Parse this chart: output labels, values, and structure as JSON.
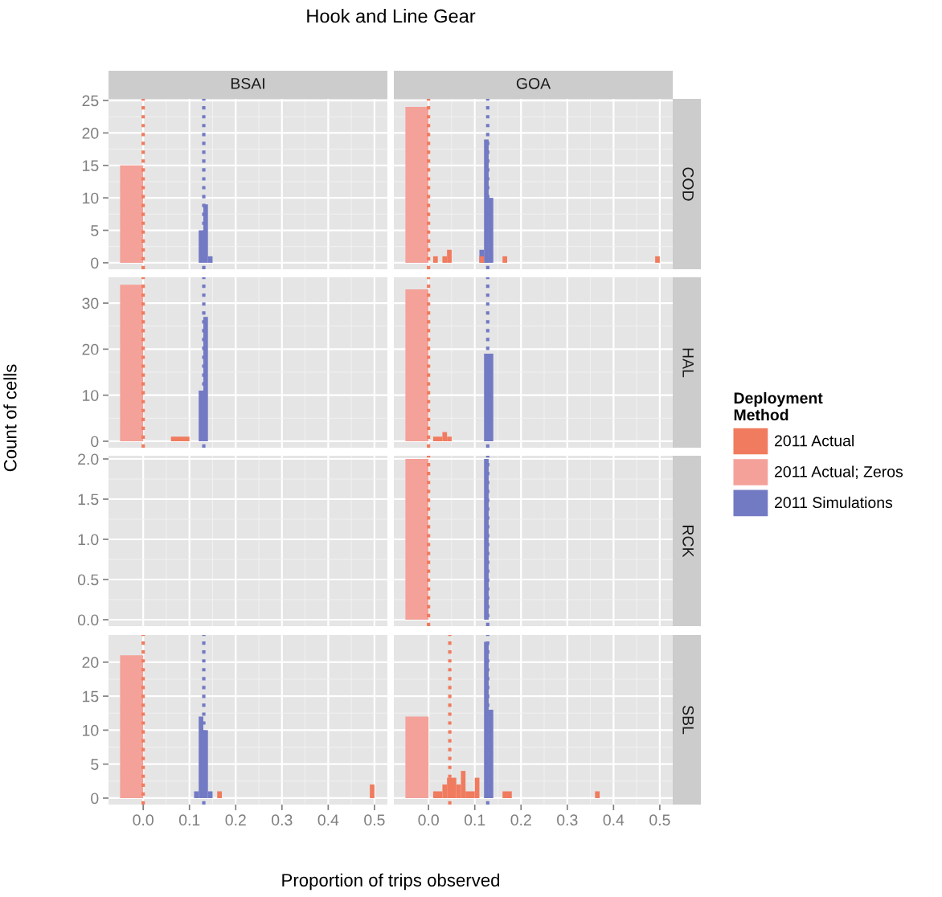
{
  "chart_data": [
    {
      "type": "histogram",
      "title": "Hook and Line Gear",
      "xlabel": "Proportion of trips observed",
      "annotations": [
        "BSAI"
      ],
      "tick_labels": "y",
      "grid": true,
      "xlim": [
        -0.075,
        0.528
      ],
      "xticks": [
        0,
        0.1,
        0.2,
        0.3,
        0.4,
        0.5
      ],
      "ylim": [
        -1.0,
        25.25
      ],
      "yticks": [
        0,
        5,
        10,
        15,
        20,
        25
      ],
      "bins": [
        -0.05,
        0,
        0.12,
        0.13,
        0.14,
        0.15
      ],
      "series": [
        {
          "color": "#f4a199",
          "values": [
            15,
            null,
            null,
            null,
            null
          ]
        },
        {
          "color": "#737ac4",
          "values": [
            null,
            null,
            5,
            9,
            1
          ]
        }
      ],
      "ref_lines": [
        {
          "axis": "x",
          "value": 0,
          "color": "#f07b5e",
          "line_style": "dotted"
        },
        {
          "axis": "x",
          "value": 0.131,
          "color": "#737ac4",
          "line_style": "dotted"
        }
      ]
    },
    {
      "type": "histogram",
      "annotations": [
        "GOA"
      ],
      "y2label": "COD",
      "tick_labels": false,
      "grid": true,
      "legend": "right",
      "legend_title": "Deployment Method",
      "xlim": [
        -0.075,
        0.528
      ],
      "xticks": [
        0,
        0.1,
        0.2,
        0.3,
        0.4,
        0.5
      ],
      "ylim": [
        -1.0,
        25.25
      ],
      "yticks": [
        0,
        5,
        10,
        15,
        20,
        25
      ],
      "bins": [
        -0.05,
        0,
        0.01,
        0.02,
        0.03,
        0.04,
        0.05,
        0.11,
        0.12,
        0.13,
        0.14,
        0.16,
        0.17,
        0.49,
        0.5
      ],
      "series": [
        {
          "name": "2011 Actual",
          "color": "#f07b5e",
          "values": [
            null,
            null,
            1,
            null,
            1,
            2,
            null,
            1,
            null,
            null,
            null,
            1,
            null,
            1
          ]
        },
        {
          "name": "2011 Actual; Zeros",
          "color": "#f4a199",
          "values": [
            24,
            null,
            null,
            null,
            null,
            null,
            null,
            null,
            null,
            null,
            null,
            null,
            null,
            null
          ]
        },
        {
          "name": "2011 Simulations",
          "color": "#737ac4",
          "values": [
            null,
            null,
            null,
            null,
            null,
            null,
            null,
            2,
            19,
            10,
            null,
            null,
            null,
            null
          ]
        }
      ],
      "ref_lines": [
        {
          "axis": "x",
          "value": 0,
          "color": "#f07b5e",
          "line_style": "dotted"
        },
        {
          "axis": "x",
          "value": 0.128,
          "color": "#737ac4",
          "line_style": "dotted"
        }
      ]
    },
    {
      "type": "histogram",
      "ylabel": "Count of cells",
      "tick_labels": "y",
      "grid": true,
      "xlim": [
        -0.075,
        0.528
      ],
      "xticks": [
        0,
        0.1,
        0.2,
        0.3,
        0.4,
        0.5
      ],
      "ylim": [
        -1.4,
        35.6
      ],
      "yticks": [
        0,
        10,
        20,
        30
      ],
      "bins": [
        -0.05,
        0,
        0.06,
        0.1,
        0.12,
        0.13,
        0.14
      ],
      "series": [
        {
          "color": "#f07b5e",
          "values": [
            null,
            null,
            1,
            null,
            null,
            null
          ]
        },
        {
          "color": "#f4a199",
          "values": [
            34,
            null,
            null,
            null,
            null,
            null
          ]
        },
        {
          "color": "#737ac4",
          "values": [
            null,
            null,
            null,
            null,
            11,
            27
          ]
        }
      ],
      "ref_lines": [
        {
          "axis": "x",
          "value": 0,
          "color": "#f07b5e",
          "line_style": "dotted"
        },
        {
          "axis": "x",
          "value": 0.131,
          "color": "#737ac4",
          "line_style": "dotted"
        }
      ]
    },
    {
      "type": "histogram",
      "y2label": "HAL",
      "tick_labels": false,
      "grid": true,
      "xlim": [
        -0.075,
        0.528
      ],
      "xticks": [
        0,
        0.1,
        0.2,
        0.3,
        0.4,
        0.5
      ],
      "ylim": [
        -1.4,
        35.6
      ],
      "yticks": [
        0,
        10,
        20,
        30
      ],
      "bins": [
        -0.05,
        0,
        0.01,
        0.03,
        0.04,
        0.05,
        0.12,
        0.14
      ],
      "series": [
        {
          "color": "#f07b5e",
          "values": [
            null,
            null,
            1,
            2,
            1,
            null,
            null
          ]
        },
        {
          "color": "#f4a199",
          "values": [
            33,
            null,
            null,
            null,
            null,
            null,
            null
          ]
        },
        {
          "color": "#737ac4",
          "values": [
            null,
            null,
            null,
            null,
            null,
            null,
            19
          ]
        }
      ],
      "ref_lines": [
        {
          "axis": "x",
          "value": 0,
          "color": "#f07b5e",
          "line_style": "dotted"
        },
        {
          "axis": "x",
          "value": 0.128,
          "color": "#737ac4",
          "line_style": "dotted"
        }
      ]
    },
    {
      "type": "histogram",
      "tick_labels": "y",
      "grid": true,
      "xlim": [
        -0.075,
        0.528
      ],
      "xticks": [
        0,
        0.1,
        0.2,
        0.3,
        0.4,
        0.5
      ],
      "ylim": [
        -0.08,
        2.04
      ],
      "yticks": [
        {
          "value": 0,
          "label": "0.0"
        },
        0.5,
        {
          "value": 1,
          "label": "1.0"
        },
        1.5,
        {
          "value": 2,
          "label": "2.0"
        }
      ]
    },
    {
      "type": "histogram",
      "y2label": "RCK",
      "tick_labels": false,
      "grid": true,
      "xlim": [
        -0.075,
        0.528
      ],
      "xticks": [
        0,
        0.1,
        0.2,
        0.3,
        0.4,
        0.5
      ],
      "ylim": [
        -0.08,
        2.04
      ],
      "yticks": [
        0,
        0.5,
        1,
        1.5,
        2
      ],
      "bins": [
        -0.05,
        0,
        0.12,
        0.13
      ],
      "series": [
        {
          "color": "#f4a199",
          "values": [
            2,
            null,
            null
          ]
        },
        {
          "color": "#737ac4",
          "values": [
            null,
            null,
            2
          ]
        }
      ],
      "ref_lines": [
        {
          "axis": "x",
          "value": 0,
          "color": "#f07b5e",
          "line_style": "dotted"
        },
        {
          "axis": "x",
          "value": 0.128,
          "color": "#737ac4",
          "line_style": "dotted"
        }
      ]
    },
    {
      "type": "histogram",
      "grid": true,
      "xlim": [
        -0.075,
        0.528
      ],
      "xticks": [
        {
          "value": 0,
          "label": "0.0"
        },
        0.1,
        0.2,
        0.3,
        0.4,
        0.5
      ],
      "ylim": [
        -0.95,
        24.0
      ],
      "yticks": [
        0,
        5,
        10,
        15,
        20
      ],
      "bins": [
        -0.05,
        0,
        0.11,
        0.12,
        0.13,
        0.14,
        0.15,
        0.16,
        0.17,
        0.49,
        0.5
      ],
      "series": [
        {
          "color": "#f07b5e",
          "values": [
            null,
            null,
            null,
            null,
            null,
            null,
            null,
            1,
            null,
            2
          ]
        },
        {
          "color": "#f4a199",
          "values": [
            21,
            null,
            null,
            null,
            null,
            null,
            null,
            null,
            null,
            null
          ]
        },
        {
          "color": "#737ac4",
          "values": [
            null,
            null,
            1,
            12,
            10,
            1,
            null,
            null,
            null,
            null
          ]
        }
      ],
      "ref_lines": [
        {
          "axis": "x",
          "value": 0,
          "color": "#f07b5e",
          "line_style": "dotted"
        },
        {
          "axis": "x",
          "value": 0.131,
          "color": "#737ac4",
          "line_style": "dotted"
        }
      ]
    },
    {
      "type": "histogram",
      "y2label": "SBL",
      "tick_labels": "x",
      "grid": true,
      "xlim": [
        -0.075,
        0.528
      ],
      "xticks": [
        {
          "value": 0,
          "label": "0.0"
        },
        0.1,
        0.2,
        0.3,
        0.4,
        0.5
      ],
      "ylim": [
        -0.95,
        24.0
      ],
      "yticks": [
        0,
        5,
        10,
        15,
        20
      ],
      "bins": [
        -0.05,
        0,
        0.01,
        0.03,
        0.04,
        0.06,
        0.07,
        0.08,
        0.1,
        0.11,
        0.12,
        0.13,
        0.14,
        0.16,
        0.18,
        0.36,
        0.37
      ],
      "series": [
        {
          "color": "#f07b5e",
          "values": [
            null,
            null,
            1,
            2,
            3,
            2,
            4,
            1,
            3,
            null,
            null,
            null,
            null,
            1,
            null,
            1
          ]
        },
        {
          "color": "#f4a199",
          "values": [
            12,
            null,
            null,
            null,
            null,
            null,
            null,
            null,
            null,
            null,
            null,
            null,
            null,
            null,
            null,
            null
          ]
        },
        {
          "color": "#737ac4",
          "values": [
            null,
            null,
            null,
            null,
            null,
            null,
            null,
            null,
            null,
            null,
            23,
            13,
            null,
            null,
            null,
            null
          ]
        }
      ],
      "ref_lines": [
        {
          "axis": "x",
          "value": 0.046,
          "color": "#f07b5e",
          "line_style": "dotted"
        },
        {
          "axis": "x",
          "value": 0.128,
          "color": "#737ac4",
          "line_style": "dotted"
        }
      ]
    }
  ]
}
